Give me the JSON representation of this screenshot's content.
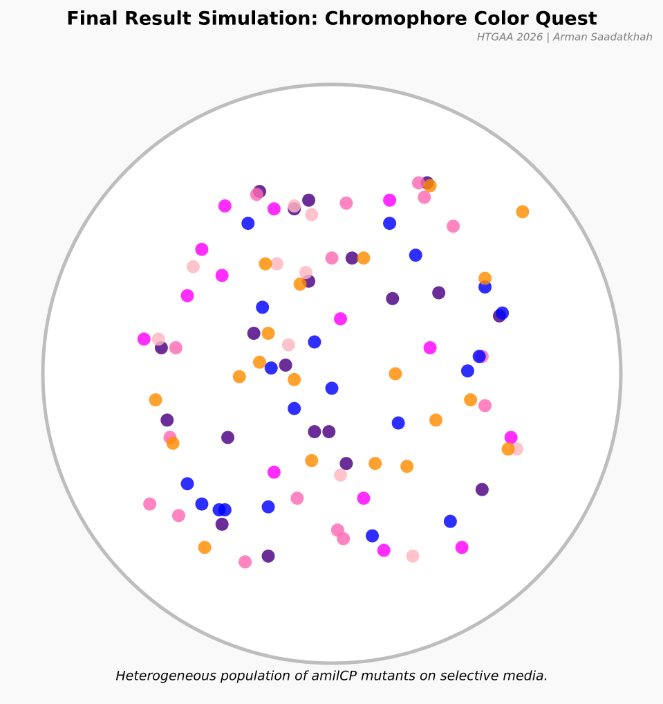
{
  "chart_data": {
    "type": "scatter",
    "title": "Final Result Simulation: Chromophore Color Quest",
    "subtitle": "HTGAA 2026 | Arman Saadatkhah",
    "caption": "Heterogeneous population of amilCP mutants on selective media.",
    "xlim": [
      -10,
      10
    ],
    "ylim": [
      -10,
      10
    ],
    "series": [
      {
        "color": "#4b0082",
        "x": [
          -2.5,
          -0.8,
          -1.3,
          0.7,
          -0.8,
          2.1,
          3.7,
          5.8,
          -2.7,
          -5.9,
          -1.6,
          -5.7,
          -3.6,
          -0.6,
          -0.1,
          0.5,
          5.2,
          -3.8,
          -2.2,
          3.3
        ],
        "values": [
          6.3,
          6.0,
          5.7,
          4.0,
          3.2,
          2.6,
          2.8,
          2.0,
          1.4,
          0.9,
          0.3,
          -1.6,
          -2.2,
          -2.0,
          -2.0,
          -3.1,
          -4.0,
          -5.2,
          -6.3,
          6.6
        ]
      },
      {
        "color": "#ff69b4",
        "x": [
          3.0,
          3.2,
          0.5,
          4.2,
          0.0,
          -2.6,
          -5.4,
          5.2,
          5.3,
          -5.6,
          -6.3,
          -5.3,
          -1.2,
          0.2,
          0.4,
          -3.0
        ],
        "values": [
          6.6,
          6.1,
          5.9,
          5.1,
          4.0,
          6.2,
          0.9,
          0.6,
          -1.1,
          -2.2,
          -4.5,
          -4.9,
          -4.3,
          -5.4,
          -5.7,
          -6.5
        ]
      },
      {
        "color": "#ffb6c1",
        "x": [
          -1.3,
          -0.7,
          -4.8,
          -1.9,
          -0.9,
          -6.0,
          -1.5,
          6.4,
          0.3,
          2.8
        ],
        "values": [
          5.8,
          5.5,
          3.7,
          3.8,
          3.5,
          1.2,
          1.0,
          -2.6,
          -3.5,
          -6.3
        ]
      },
      {
        "color": "#ff00ff",
        "x": [
          -3.7,
          -2.0,
          2.0,
          -4.5,
          -3.8,
          -5.0,
          -6.5,
          0.3,
          3.4,
          6.2,
          -2.0,
          1.1,
          1.8,
          4.5
        ],
        "values": [
          5.8,
          5.7,
          6.0,
          4.3,
          3.4,
          2.7,
          1.2,
          1.9,
          0.9,
          -2.2,
          -3.4,
          -4.3,
          -6.1,
          -6.0
        ]
      },
      {
        "color": "#0000ff",
        "x": [
          -2.9,
          2.0,
          2.9,
          5.3,
          5.9,
          -2.4,
          -0.6,
          -2.1,
          5.1,
          4.7,
          0.0,
          -1.3,
          2.3,
          -5.0,
          -4.5,
          -3.9,
          -3.7,
          -2.2,
          4.1,
          1.4
        ],
        "values": [
          5.2,
          5.2,
          4.1,
          3.0,
          2.1,
          2.3,
          1.1,
          0.2,
          0.6,
          0.1,
          -0.5,
          -1.2,
          -1.7,
          -3.8,
          -4.5,
          -4.7,
          -4.7,
          -4.6,
          -5.1,
          -5.6
        ]
      },
      {
        "color": "#ff8c00",
        "x": [
          3.4,
          6.6,
          -2.3,
          1.1,
          -1.1,
          5.3,
          -2.2,
          -2.5,
          -3.2,
          -1.3,
          2.2,
          -6.1,
          4.8,
          3.6,
          -5.5,
          -0.7,
          1.5,
          2.6,
          6.1,
          -4.4
        ],
        "values": [
          6.5,
          5.6,
          3.8,
          4.0,
          3.1,
          3.3,
          1.4,
          0.4,
          -0.1,
          -0.2,
          0.0,
          -0.9,
          -0.9,
          -1.6,
          -2.4,
          -3.0,
          -3.1,
          -3.2,
          -2.6,
          -6.0
        ]
      }
    ]
  }
}
